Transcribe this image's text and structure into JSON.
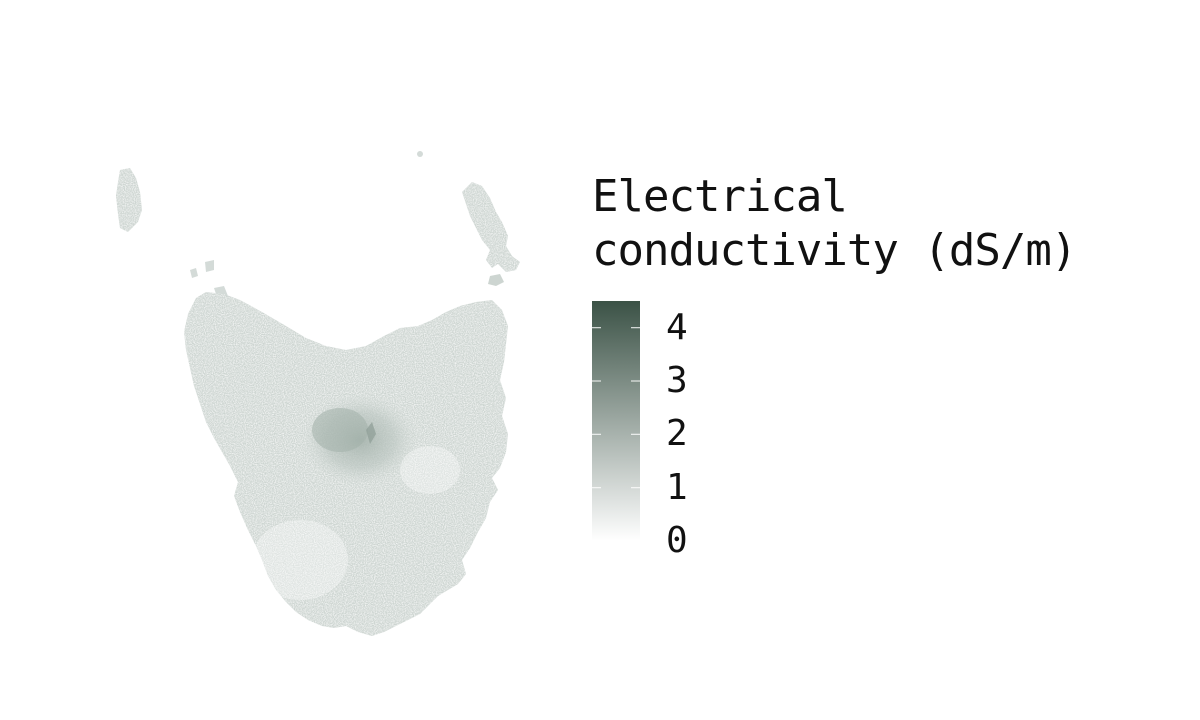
{
  "legend": {
    "title_line1": "Electrical",
    "title_line2": "conductivity (dS/m)",
    "ticks": [
      "0",
      "1",
      "2",
      "3",
      "4"
    ],
    "tick_values": [
      0,
      1,
      2,
      3,
      4
    ],
    "range": [
      0,
      4.5
    ],
    "color_low": "#ffffff",
    "color_high": "#3b5246"
  },
  "map": {
    "region_icon": "tasmania-island-shape",
    "land_color": "#cdd5d1",
    "hotspot_color": "#a9b6b0"
  }
}
